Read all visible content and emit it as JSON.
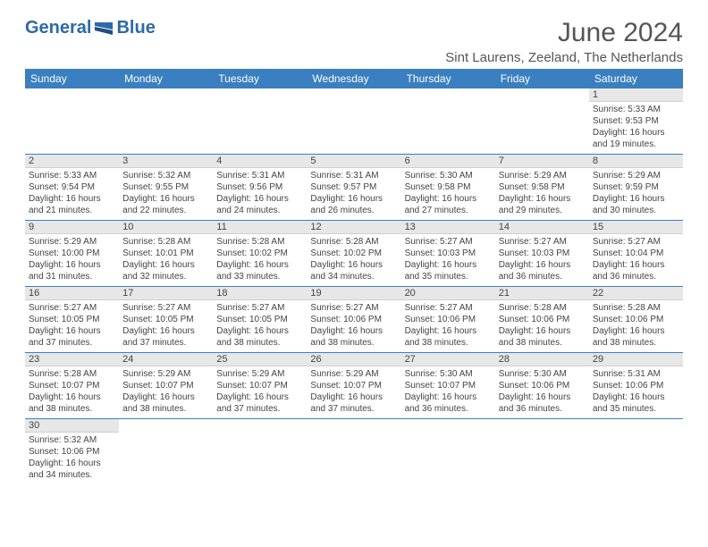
{
  "logo": {
    "text1": "General",
    "text2": "Blue"
  },
  "title": "June 2024",
  "location": "Sint Laurens, Zeeland, The Netherlands",
  "weekdays": [
    "Sunday",
    "Monday",
    "Tuesday",
    "Wednesday",
    "Thursday",
    "Friday",
    "Saturday"
  ],
  "colors": {
    "header_bg": "#3a7fbf",
    "header_text": "#ffffff",
    "daynum_bg": "#e7e7e7",
    "border": "#3a7fbf",
    "logo": "#2e6aa8"
  },
  "weeks": [
    [
      null,
      null,
      null,
      null,
      null,
      null,
      {
        "n": "1",
        "sr": "Sunrise: 5:33 AM",
        "ss": "Sunset: 9:53 PM",
        "d1": "Daylight: 16 hours",
        "d2": "and 19 minutes."
      }
    ],
    [
      {
        "n": "2",
        "sr": "Sunrise: 5:33 AM",
        "ss": "Sunset: 9:54 PM",
        "d1": "Daylight: 16 hours",
        "d2": "and 21 minutes."
      },
      {
        "n": "3",
        "sr": "Sunrise: 5:32 AM",
        "ss": "Sunset: 9:55 PM",
        "d1": "Daylight: 16 hours",
        "d2": "and 22 minutes."
      },
      {
        "n": "4",
        "sr": "Sunrise: 5:31 AM",
        "ss": "Sunset: 9:56 PM",
        "d1": "Daylight: 16 hours",
        "d2": "and 24 minutes."
      },
      {
        "n": "5",
        "sr": "Sunrise: 5:31 AM",
        "ss": "Sunset: 9:57 PM",
        "d1": "Daylight: 16 hours",
        "d2": "and 26 minutes."
      },
      {
        "n": "6",
        "sr": "Sunrise: 5:30 AM",
        "ss": "Sunset: 9:58 PM",
        "d1": "Daylight: 16 hours",
        "d2": "and 27 minutes."
      },
      {
        "n": "7",
        "sr": "Sunrise: 5:29 AM",
        "ss": "Sunset: 9:58 PM",
        "d1": "Daylight: 16 hours",
        "d2": "and 29 minutes."
      },
      {
        "n": "8",
        "sr": "Sunrise: 5:29 AM",
        "ss": "Sunset: 9:59 PM",
        "d1": "Daylight: 16 hours",
        "d2": "and 30 minutes."
      }
    ],
    [
      {
        "n": "9",
        "sr": "Sunrise: 5:29 AM",
        "ss": "Sunset: 10:00 PM",
        "d1": "Daylight: 16 hours",
        "d2": "and 31 minutes."
      },
      {
        "n": "10",
        "sr": "Sunrise: 5:28 AM",
        "ss": "Sunset: 10:01 PM",
        "d1": "Daylight: 16 hours",
        "d2": "and 32 minutes."
      },
      {
        "n": "11",
        "sr": "Sunrise: 5:28 AM",
        "ss": "Sunset: 10:02 PM",
        "d1": "Daylight: 16 hours",
        "d2": "and 33 minutes."
      },
      {
        "n": "12",
        "sr": "Sunrise: 5:28 AM",
        "ss": "Sunset: 10:02 PM",
        "d1": "Daylight: 16 hours",
        "d2": "and 34 minutes."
      },
      {
        "n": "13",
        "sr": "Sunrise: 5:27 AM",
        "ss": "Sunset: 10:03 PM",
        "d1": "Daylight: 16 hours",
        "d2": "and 35 minutes."
      },
      {
        "n": "14",
        "sr": "Sunrise: 5:27 AM",
        "ss": "Sunset: 10:03 PM",
        "d1": "Daylight: 16 hours",
        "d2": "and 36 minutes."
      },
      {
        "n": "15",
        "sr": "Sunrise: 5:27 AM",
        "ss": "Sunset: 10:04 PM",
        "d1": "Daylight: 16 hours",
        "d2": "and 36 minutes."
      }
    ],
    [
      {
        "n": "16",
        "sr": "Sunrise: 5:27 AM",
        "ss": "Sunset: 10:05 PM",
        "d1": "Daylight: 16 hours",
        "d2": "and 37 minutes."
      },
      {
        "n": "17",
        "sr": "Sunrise: 5:27 AM",
        "ss": "Sunset: 10:05 PM",
        "d1": "Daylight: 16 hours",
        "d2": "and 37 minutes."
      },
      {
        "n": "18",
        "sr": "Sunrise: 5:27 AM",
        "ss": "Sunset: 10:05 PM",
        "d1": "Daylight: 16 hours",
        "d2": "and 38 minutes."
      },
      {
        "n": "19",
        "sr": "Sunrise: 5:27 AM",
        "ss": "Sunset: 10:06 PM",
        "d1": "Daylight: 16 hours",
        "d2": "and 38 minutes."
      },
      {
        "n": "20",
        "sr": "Sunrise: 5:27 AM",
        "ss": "Sunset: 10:06 PM",
        "d1": "Daylight: 16 hours",
        "d2": "and 38 minutes."
      },
      {
        "n": "21",
        "sr": "Sunrise: 5:28 AM",
        "ss": "Sunset: 10:06 PM",
        "d1": "Daylight: 16 hours",
        "d2": "and 38 minutes."
      },
      {
        "n": "22",
        "sr": "Sunrise: 5:28 AM",
        "ss": "Sunset: 10:06 PM",
        "d1": "Daylight: 16 hours",
        "d2": "and 38 minutes."
      }
    ],
    [
      {
        "n": "23",
        "sr": "Sunrise: 5:28 AM",
        "ss": "Sunset: 10:07 PM",
        "d1": "Daylight: 16 hours",
        "d2": "and 38 minutes."
      },
      {
        "n": "24",
        "sr": "Sunrise: 5:29 AM",
        "ss": "Sunset: 10:07 PM",
        "d1": "Daylight: 16 hours",
        "d2": "and 38 minutes."
      },
      {
        "n": "25",
        "sr": "Sunrise: 5:29 AM",
        "ss": "Sunset: 10:07 PM",
        "d1": "Daylight: 16 hours",
        "d2": "and 37 minutes."
      },
      {
        "n": "26",
        "sr": "Sunrise: 5:29 AM",
        "ss": "Sunset: 10:07 PM",
        "d1": "Daylight: 16 hours",
        "d2": "and 37 minutes."
      },
      {
        "n": "27",
        "sr": "Sunrise: 5:30 AM",
        "ss": "Sunset: 10:07 PM",
        "d1": "Daylight: 16 hours",
        "d2": "and 36 minutes."
      },
      {
        "n": "28",
        "sr": "Sunrise: 5:30 AM",
        "ss": "Sunset: 10:06 PM",
        "d1": "Daylight: 16 hours",
        "d2": "and 36 minutes."
      },
      {
        "n": "29",
        "sr": "Sunrise: 5:31 AM",
        "ss": "Sunset: 10:06 PM",
        "d1": "Daylight: 16 hours",
        "d2": "and 35 minutes."
      }
    ],
    [
      {
        "n": "30",
        "sr": "Sunrise: 5:32 AM",
        "ss": "Sunset: 10:06 PM",
        "d1": "Daylight: 16 hours",
        "d2": "and 34 minutes."
      },
      null,
      null,
      null,
      null,
      null,
      null
    ]
  ]
}
